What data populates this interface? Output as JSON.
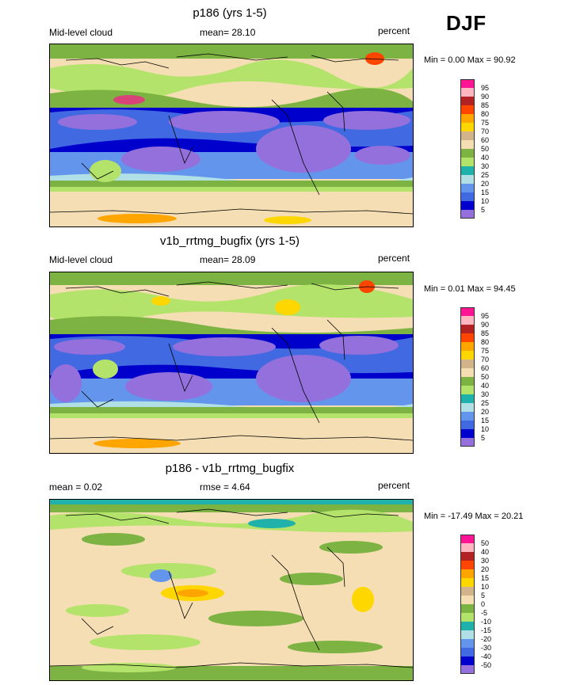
{
  "season": "DJF",
  "panels": [
    {
      "title": "p186 (yrs 1-5)",
      "left_label": "Mid-level cloud",
      "center_label": "mean=  28.10",
      "right_label": "percent",
      "minmax": "Min =   0.00 Max =  90.92",
      "colorbar": {
        "labels": [
          "95",
          "90",
          "85",
          "80",
          "75",
          "70",
          "60",
          "50",
          "40",
          "30",
          "25",
          "20",
          "15",
          "10",
          "5"
        ],
        "colors": [
          "#ff1493",
          "#ffb6c1",
          "#b22222",
          "#ff4500",
          "#ffa500",
          "#ffd700",
          "#d2b48c",
          "#f5deb3",
          "#7cb342",
          "#b3e36b",
          "#20b2aa",
          "#b0e0e6",
          "#6495ed",
          "#4169e1",
          "#0000cd",
          "#9370db"
        ]
      }
    },
    {
      "title": "v1b_rrtmg_bugfix (yrs 1-5)",
      "left_label": "Mid-level cloud",
      "center_label": "mean=  28.09",
      "right_label": "percent",
      "minmax": "Min =   0.01 Max =  94.45",
      "colorbar": {
        "labels": [
          "95",
          "90",
          "85",
          "80",
          "75",
          "70",
          "60",
          "50",
          "40",
          "30",
          "25",
          "20",
          "15",
          "10",
          "5"
        ],
        "colors": [
          "#ff1493",
          "#ffb6c1",
          "#b22222",
          "#ff4500",
          "#ffa500",
          "#ffd700",
          "#d2b48c",
          "#f5deb3",
          "#7cb342",
          "#b3e36b",
          "#20b2aa",
          "#b0e0e6",
          "#6495ed",
          "#4169e1",
          "#0000cd",
          "#9370db"
        ]
      }
    },
    {
      "title": "p186 - v1b_rrtmg_bugfix",
      "left_label": "mean =   0.02",
      "center_label": "rmse =   4.64",
      "right_label": "percent",
      "minmax": "Min = -17.49 Max =  20.21",
      "colorbar": {
        "labels": [
          "50",
          "40",
          "30",
          "20",
          "15",
          "10",
          "5",
          "0",
          "-5",
          "-10",
          "-15",
          "-20",
          "-30",
          "-40",
          "-50"
        ],
        "colors": [
          "#ff1493",
          "#ffb6c1",
          "#b22222",
          "#ff4500",
          "#ffa500",
          "#ffd700",
          "#d2b48c",
          "#f5deb3",
          "#7cb342",
          "#b3e36b",
          "#20b2aa",
          "#b0e0e6",
          "#6495ed",
          "#4169e1",
          "#0000cd",
          "#9370db"
        ]
      }
    }
  ]
}
